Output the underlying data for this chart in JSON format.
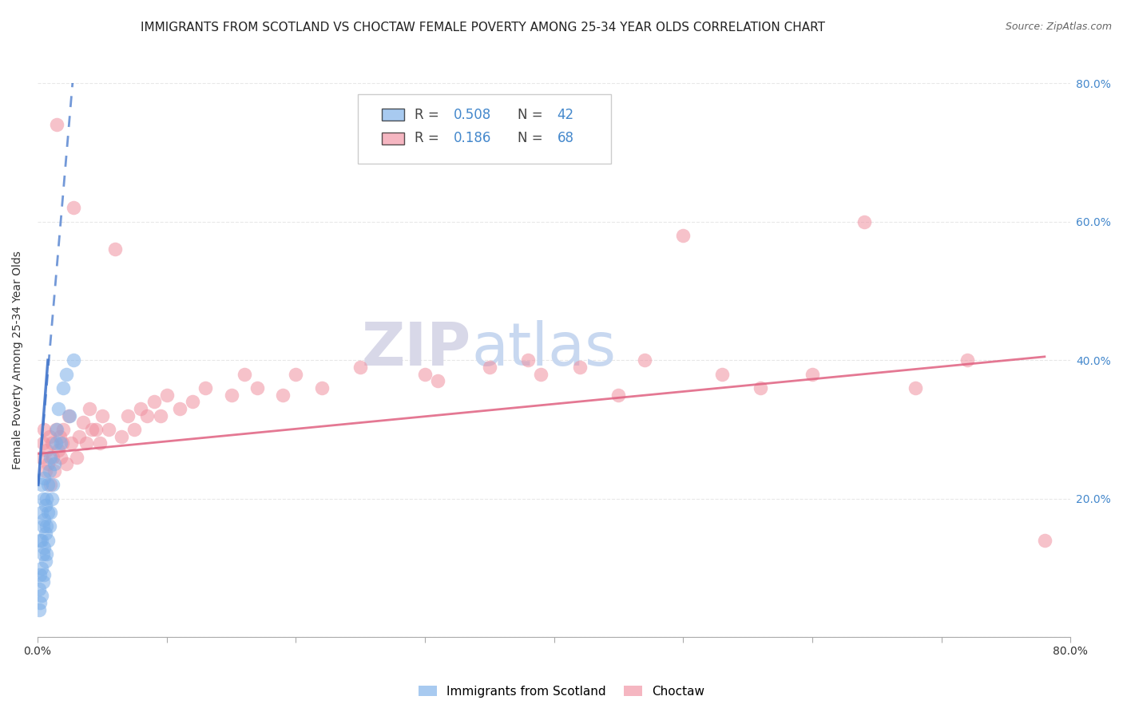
{
  "title": "IMMIGRANTS FROM SCOTLAND VS CHOCTAW FEMALE POVERTY AMONG 25-34 YEAR OLDS CORRELATION CHART",
  "source": "Source: ZipAtlas.com",
  "ylabel": "Female Poverty Among 25-34 Year Olds",
  "watermark_zip": "ZIP",
  "watermark_atlas": "atlas",
  "xlim": [
    0.0,
    0.8
  ],
  "ylim": [
    0.0,
    0.8
  ],
  "xticks": [
    0.0,
    0.1,
    0.2,
    0.3,
    0.4,
    0.5,
    0.6,
    0.7,
    0.8
  ],
  "xtick_labels_show": [
    "0.0%",
    "",
    "",
    "",
    "",
    "",
    "",
    "",
    "80.0%"
  ],
  "yticks": [
    0.0,
    0.2,
    0.4,
    0.6,
    0.8
  ],
  "right_ytick_labels": [
    "",
    "20.0%",
    "40.0%",
    "60.0%",
    "80.0%"
  ],
  "scotland_x": [
    0.001,
    0.001,
    0.002,
    0.002,
    0.002,
    0.003,
    0.003,
    0.003,
    0.003,
    0.003,
    0.004,
    0.004,
    0.004,
    0.004,
    0.005,
    0.005,
    0.005,
    0.005,
    0.006,
    0.006,
    0.006,
    0.007,
    0.007,
    0.007,
    0.008,
    0.008,
    0.008,
    0.009,
    0.009,
    0.01,
    0.01,
    0.011,
    0.012,
    0.013,
    0.014,
    0.015,
    0.016,
    0.018,
    0.02,
    0.022,
    0.025,
    0.028
  ],
  "scotland_y": [
    0.04,
    0.07,
    0.05,
    0.09,
    0.14,
    0.06,
    0.1,
    0.14,
    0.18,
    0.22,
    0.08,
    0.12,
    0.16,
    0.2,
    0.09,
    0.13,
    0.17,
    0.23,
    0.11,
    0.15,
    0.19,
    0.12,
    0.16,
    0.2,
    0.14,
    0.18,
    0.22,
    0.16,
    0.24,
    0.18,
    0.26,
    0.2,
    0.22,
    0.25,
    0.28,
    0.3,
    0.33,
    0.28,
    0.36,
    0.38,
    0.32,
    0.4
  ],
  "choctaw_x": [
    0.003,
    0.004,
    0.005,
    0.006,
    0.007,
    0.008,
    0.009,
    0.01,
    0.011,
    0.012,
    0.013,
    0.014,
    0.015,
    0.016,
    0.017,
    0.018,
    0.019,
    0.02,
    0.022,
    0.024,
    0.026,
    0.028,
    0.03,
    0.032,
    0.035,
    0.038,
    0.04,
    0.042,
    0.045,
    0.048,
    0.05,
    0.055,
    0.06,
    0.065,
    0.07,
    0.075,
    0.08,
    0.085,
    0.09,
    0.095,
    0.1,
    0.11,
    0.12,
    0.13,
    0.15,
    0.16,
    0.17,
    0.19,
    0.2,
    0.22,
    0.25,
    0.28,
    0.3,
    0.31,
    0.35,
    0.38,
    0.39,
    0.42,
    0.45,
    0.47,
    0.5,
    0.53,
    0.56,
    0.6,
    0.64,
    0.68,
    0.72,
    0.78
  ],
  "choctaw_y": [
    0.26,
    0.28,
    0.3,
    0.24,
    0.27,
    0.25,
    0.29,
    0.22,
    0.28,
    0.26,
    0.24,
    0.3,
    0.74,
    0.27,
    0.29,
    0.26,
    0.28,
    0.3,
    0.25,
    0.32,
    0.28,
    0.62,
    0.26,
    0.29,
    0.31,
    0.28,
    0.33,
    0.3,
    0.3,
    0.28,
    0.32,
    0.3,
    0.56,
    0.29,
    0.32,
    0.3,
    0.33,
    0.32,
    0.34,
    0.32,
    0.35,
    0.33,
    0.34,
    0.36,
    0.35,
    0.38,
    0.36,
    0.35,
    0.38,
    0.36,
    0.39,
    0.7,
    0.38,
    0.37,
    0.39,
    0.4,
    0.38,
    0.39,
    0.35,
    0.4,
    0.58,
    0.38,
    0.36,
    0.38,
    0.6,
    0.36,
    0.4,
    0.14
  ],
  "scotland_color": "#7aaee8",
  "choctaw_color": "#f090a0",
  "scotland_trend_color": "#4477cc",
  "choctaw_trend_color": "#e06080",
  "grid_color": "#e8e8e8",
  "background_color": "#ffffff",
  "title_fontsize": 11,
  "axis_label_fontsize": 10,
  "tick_fontsize": 10,
  "legend_fontsize": 12,
  "watermark_fontsize": 54,
  "watermark_zip_color": "#d8d8e8",
  "watermark_atlas_color": "#c8d8f0",
  "right_ytick_color": "#4488cc"
}
